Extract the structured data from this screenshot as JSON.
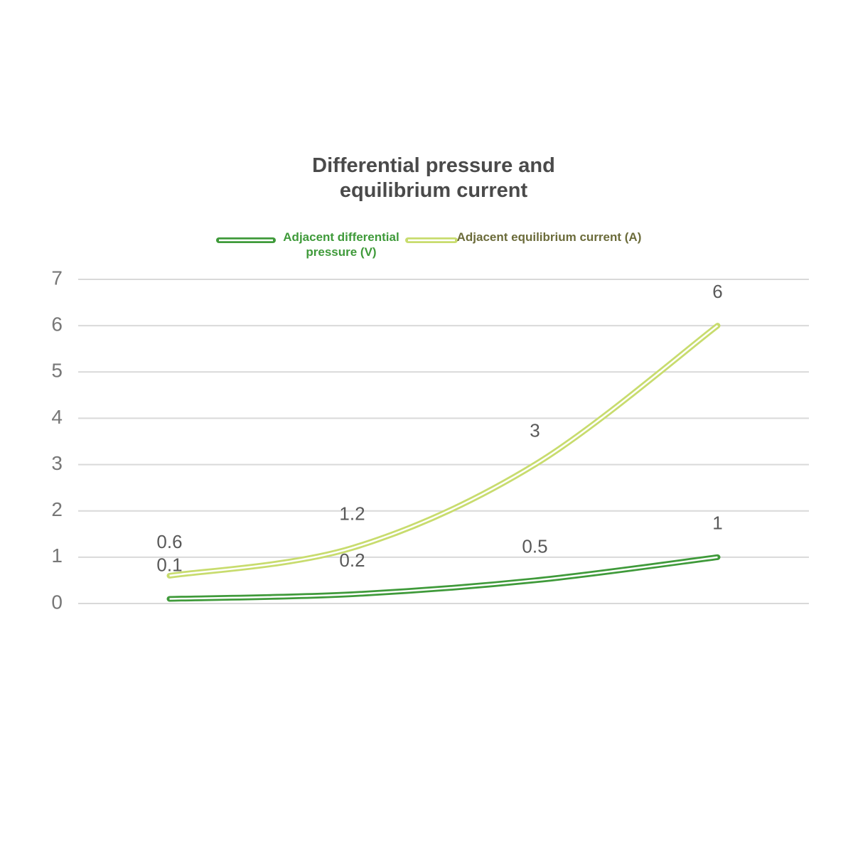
{
  "chart_data": {
    "type": "line",
    "title": "Differential pressure and equilibrium current",
    "categories": [
      null,
      null,
      null,
      null
    ],
    "series": [
      {
        "name": "Adjacent differential pressure (V)",
        "color": "#3f9a3a",
        "values": [
          0.1,
          0.2,
          0.5,
          1
        ]
      },
      {
        "name": "Adjacent equilibrium current (A)",
        "color": "#c8dc6e",
        "values": [
          0.6,
          1.2,
          3,
          6
        ]
      }
    ],
    "ylim": [
      0,
      7
    ],
    "yticks": [
      0,
      1,
      2,
      3,
      4,
      5,
      6,
      7
    ],
    "grid": true,
    "smooth": true,
    "legend": "top"
  }
}
